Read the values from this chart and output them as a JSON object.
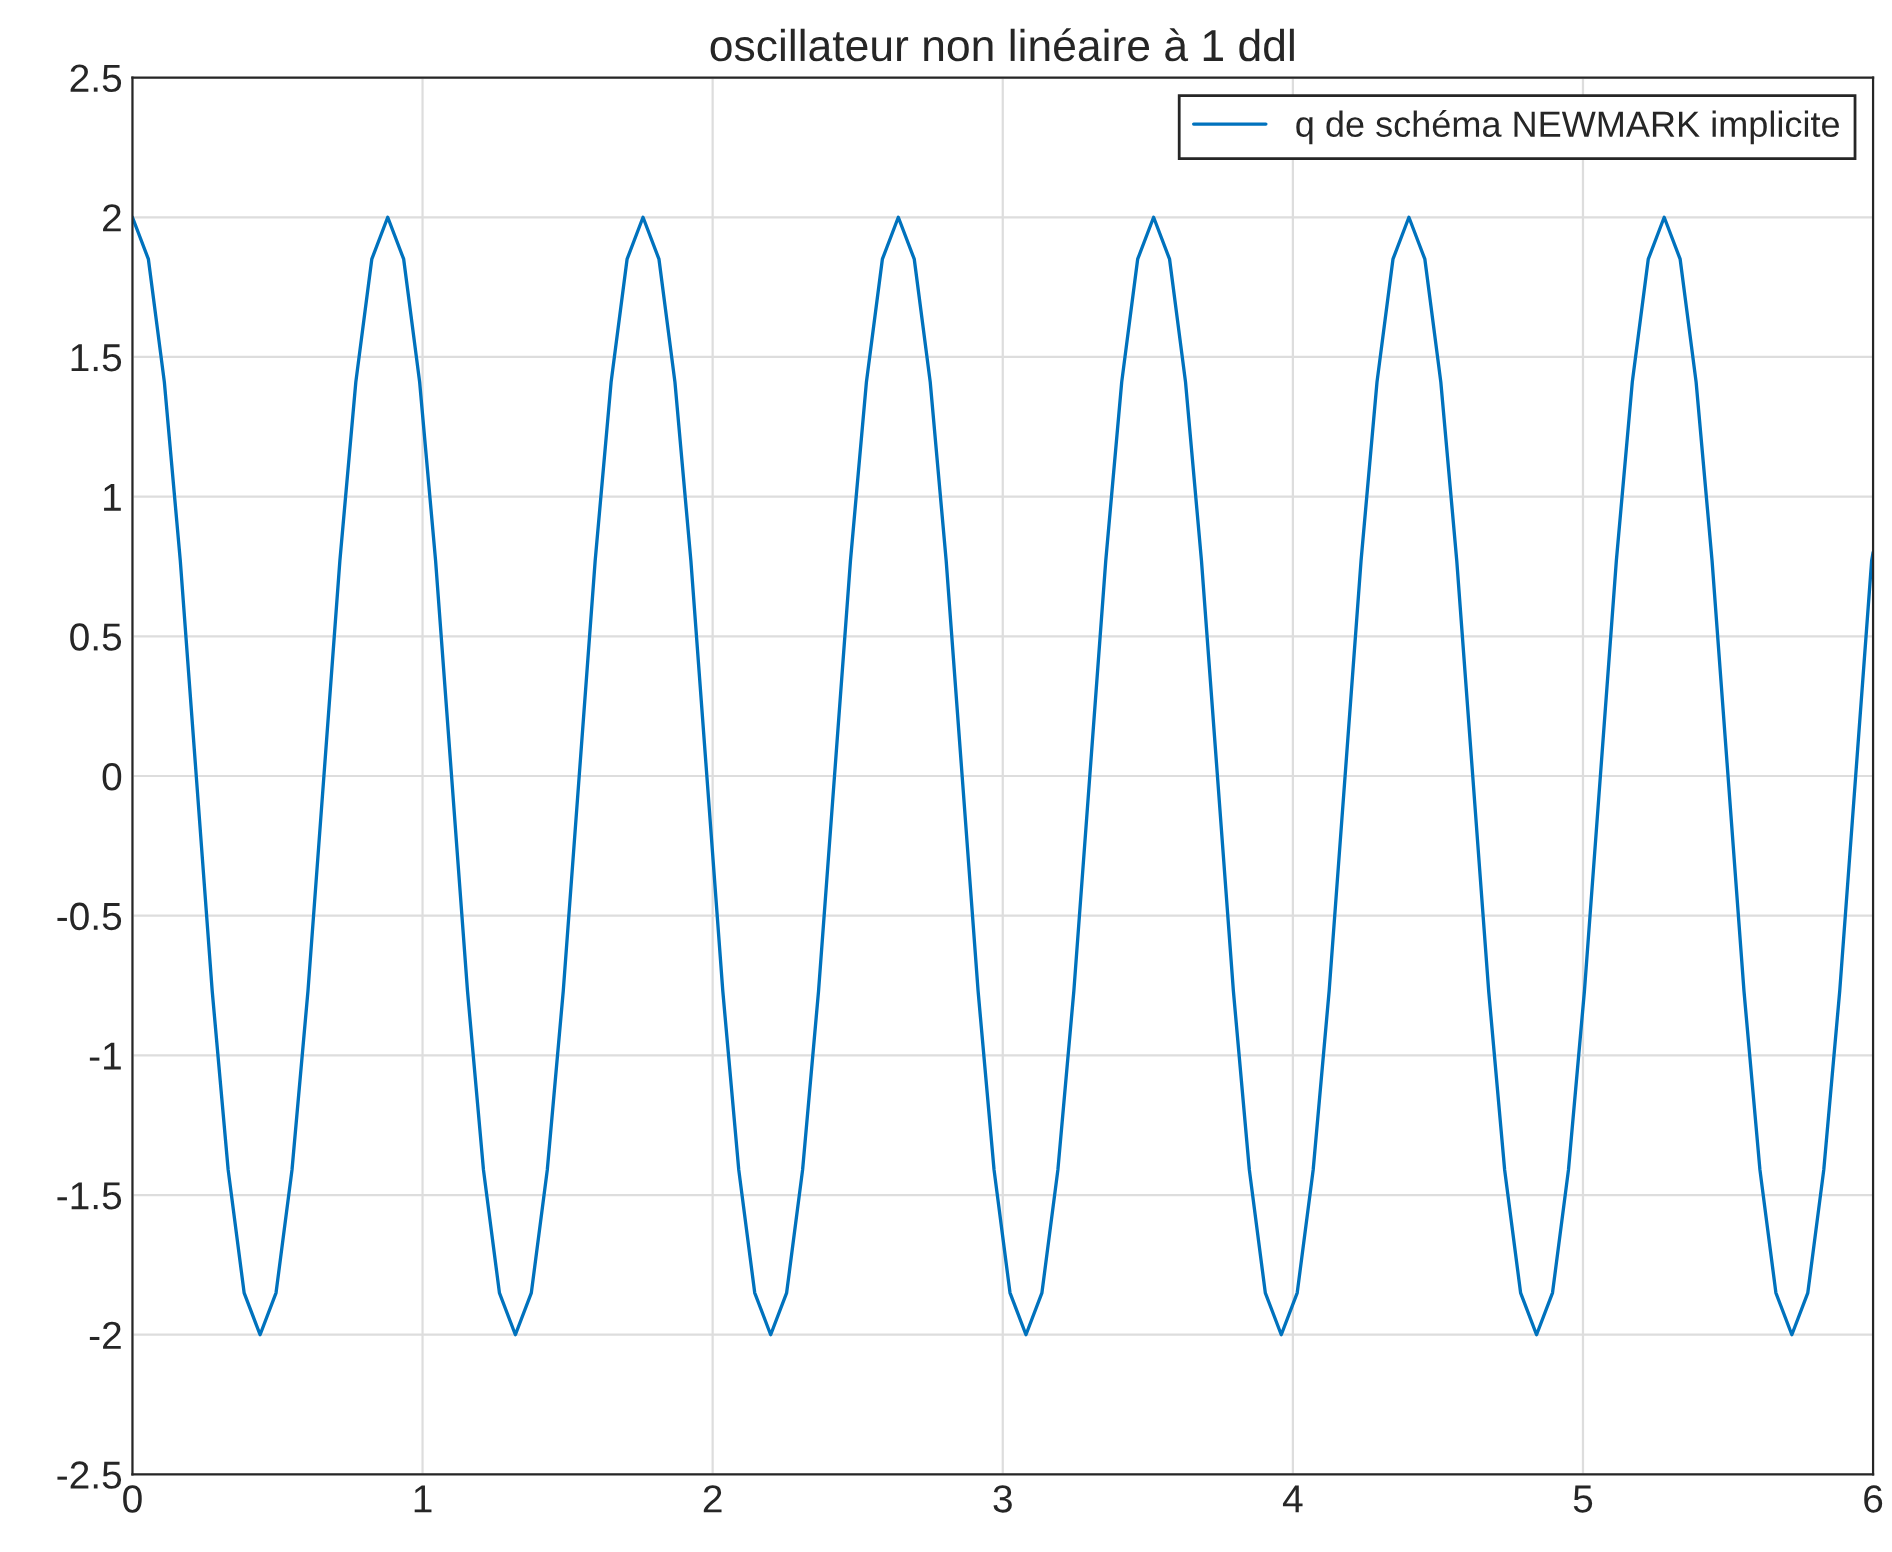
{
  "chart_data": {
    "type": "line",
    "title": "oscillateur non linéaire à 1 ddl",
    "x": [
      0,
      0.055,
      0.11,
      0.165,
      0.22,
      0.275,
      0.33,
      0.385,
      0.44,
      0.495,
      0.55,
      0.605,
      0.66,
      0.715,
      0.77,
      0.825,
      0.88,
      0.935,
      0.99,
      1.045,
      1.1,
      1.155,
      1.21,
      1.265,
      1.32,
      1.375,
      1.43,
      1.485,
      1.54,
      1.595,
      1.65,
      1.705,
      1.76,
      1.815,
      1.87,
      1.925,
      1.98,
      2.035,
      2.09,
      2.145,
      2.2,
      2.255,
      2.31,
      2.365,
      2.42,
      2.475,
      2.53,
      2.585,
      2.64,
      2.695,
      2.75,
      2.805,
      2.86,
      2.915,
      2.97,
      3.025,
      3.08,
      3.135,
      3.19,
      3.245,
      3.3,
      3.355,
      3.41,
      3.465,
      3.52,
      3.575,
      3.63,
      3.685,
      3.74,
      3.795,
      3.85,
      3.905,
      3.96,
      4.015,
      4.07,
      4.125,
      4.18,
      4.235,
      4.29,
      4.345,
      4.4,
      4.455,
      4.51,
      4.565,
      4.62,
      4.675,
      4.73,
      4.785,
      4.84,
      4.895,
      4.95,
      5.005,
      5.06,
      5.115,
      5.17,
      5.225,
      5.28,
      5.335,
      5.39,
      5.445,
      5.5,
      5.555,
      5.61,
      5.665,
      5.72,
      5.775,
      5.83,
      5.885,
      5.94,
      5.995,
      6
    ],
    "series": [
      {
        "name": "q de schéma NEWMARK implicite",
        "color": "#0072bd",
        "values": [
          2,
          1.85,
          1.41,
          0.77,
          0,
          -0.77,
          -1.41,
          -1.85,
          -2,
          -1.85,
          -1.41,
          -0.77,
          0,
          0.77,
          1.41,
          1.85,
          2,
          1.85,
          1.41,
          0.77,
          0,
          -0.77,
          -1.41,
          -1.85,
          -2,
          -1.85,
          -1.41,
          -0.77,
          0,
          0.77,
          1.41,
          1.85,
          2,
          1.85,
          1.41,
          0.77,
          0,
          -0.77,
          -1.41,
          -1.85,
          -2,
          -1.85,
          -1.41,
          -0.77,
          0,
          0.77,
          1.41,
          1.85,
          2,
          1.85,
          1.41,
          0.77,
          0,
          -0.77,
          -1.41,
          -1.85,
          -2,
          -1.85,
          -1.41,
          -0.77,
          0,
          0.77,
          1.41,
          1.85,
          2,
          1.85,
          1.41,
          0.77,
          0,
          -0.77,
          -1.41,
          -1.85,
          -2,
          -1.85,
          -1.41,
          -0.77,
          0,
          0.77,
          1.41,
          1.85,
          2,
          1.85,
          1.41,
          0.77,
          0,
          -0.77,
          -1.41,
          -1.85,
          -2,
          -1.85,
          -1.41,
          -0.77,
          0,
          0.77,
          1.41,
          1.85,
          2,
          1.85,
          1.41,
          0.77,
          0,
          -0.77,
          -1.41,
          -1.85,
          -2,
          -1.85,
          -1.41,
          -0.77,
          0,
          0.77,
          0.8
        ]
      }
    ],
    "xlim": [
      0,
      6
    ],
    "xticks": [
      0,
      1,
      2,
      3,
      4,
      5,
      6
    ],
    "ylim": [
      -2.5,
      2.5
    ],
    "yticks": [
      -2.5,
      -2,
      -1.5,
      -1,
      -0.5,
      0,
      0.5,
      1,
      1.5,
      2,
      2.5
    ],
    "grid": true,
    "legend": "top right",
    "line_style": "solid",
    "marker": "none"
  }
}
